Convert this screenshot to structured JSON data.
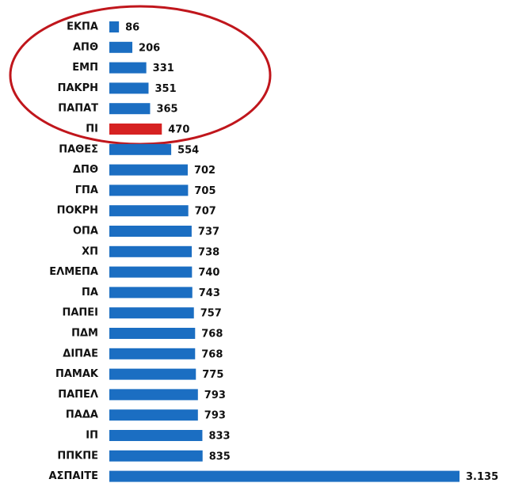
{
  "chart_data": {
    "type": "bar",
    "orientation": "horizontal",
    "categories": [
      "ΕΚΠΑ",
      "ΑΠΘ",
      "ΕΜΠ",
      "ΠΑΚΡΗ",
      "ΠΑΠΑΤ",
      "ΠΙ",
      "ΠΑΘΕΣ",
      "ΔΠΘ",
      "ΓΠΑ",
      "ΠΟΚΡΗ",
      "ΟΠΑ",
      "ΧΠ",
      "ΕΛΜΕΠΑ",
      "ΠΑ",
      "ΠΑΠΕΙ",
      "ΠΔΜ",
      "ΔΙΠΑΕ",
      "ΠΑΜΑΚ",
      "ΠΑΠΕΛ",
      "ΠΑΔΑ",
      "ΙΠ",
      "ΠΠΚΠΕ",
      "ΑΣΠΑΙΤΕ"
    ],
    "values": [
      86,
      206,
      331,
      351,
      365,
      470,
      554,
      702,
      705,
      707,
      737,
      738,
      740,
      743,
      757,
      768,
      768,
      775,
      793,
      793,
      833,
      835,
      3135
    ],
    "value_labels": [
      "86",
      "206",
      "331",
      "351",
      "365",
      "470",
      "554",
      "702",
      "705",
      "707",
      "737",
      "738",
      "740",
      "743",
      "757",
      "768",
      "768",
      "775",
      "793",
      "793",
      "833",
      "835",
      "3.135"
    ],
    "colors": [
      "#1b6ec2",
      "#1b6ec2",
      "#1b6ec2",
      "#1b6ec2",
      "#1b6ec2",
      "#d62222",
      "#1b6ec2",
      "#1b6ec2",
      "#1b6ec2",
      "#1b6ec2",
      "#1b6ec2",
      "#1b6ec2",
      "#1b6ec2",
      "#1b6ec2",
      "#1b6ec2",
      "#1b6ec2",
      "#1b6ec2",
      "#1b6ec2",
      "#1b6ec2",
      "#1b6ec2",
      "#1b6ec2",
      "#1b6ec2",
      "#1b6ec2"
    ]
  }
}
